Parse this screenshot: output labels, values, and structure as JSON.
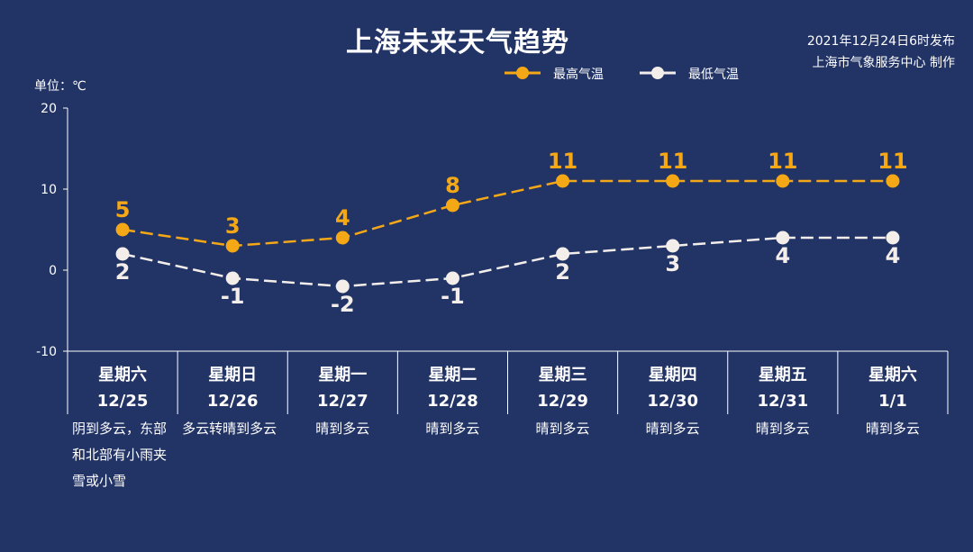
{
  "header": {
    "title": "上海未来天气趋势",
    "publish_time": "2021年12月24日6时发布",
    "publisher": "上海市气象服务中心 制作"
  },
  "colors": {
    "background": "#223366",
    "high": "#F5A816",
    "low": "#F3EEEA"
  },
  "chart_data": {
    "type": "line",
    "unit_label": "单位：℃",
    "categories": [
      {
        "weekday": "星期六",
        "date": "12/25",
        "weather": "阴到多云，东部和北部有小雨夹雪或小雪"
      },
      {
        "weekday": "星期日",
        "date": "12/26",
        "weather": "多云转晴到多云"
      },
      {
        "weekday": "星期一",
        "date": "12/27",
        "weather": "晴到多云"
      },
      {
        "weekday": "星期二",
        "date": "12/28",
        "weather": "晴到多云"
      },
      {
        "weekday": "星期三",
        "date": "12/29",
        "weather": "晴到多云"
      },
      {
        "weekday": "星期四",
        "date": "12/30",
        "weather": "晴到多云"
      },
      {
        "weekday": "星期五",
        "date": "12/31",
        "weather": "晴到多云"
      },
      {
        "weekday": "星期六",
        "date": "1/1",
        "weather": "晴到多云"
      }
    ],
    "series": [
      {
        "name": "最高气温",
        "values": [
          5,
          3,
          4,
          8,
          11,
          11,
          11,
          11
        ],
        "color": "#F5A816",
        "line": "dashed"
      },
      {
        "name": "最低气温",
        "values": [
          2,
          -1,
          -2,
          -1,
          2,
          3,
          4,
          4
        ],
        "color": "#F3EEEA",
        "line": "dashed"
      }
    ],
    "y_ticks": [
      "20",
      "10",
      "0",
      "-10"
    ],
    "ylim": [
      -10,
      20
    ],
    "legend_position": "top-center"
  }
}
